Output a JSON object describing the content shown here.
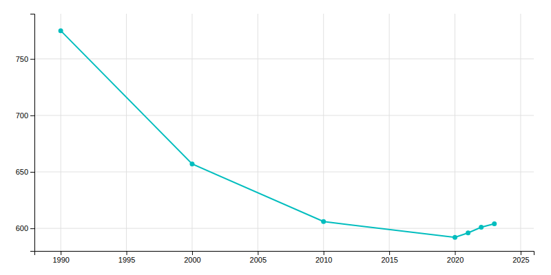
{
  "chart_data": {
    "type": "line",
    "x": [
      1990,
      2000,
      2010,
      2020,
      2021,
      2022,
      2023
    ],
    "values": [
      775,
      657,
      606,
      592,
      596,
      601,
      604
    ],
    "color": "#00BDBE",
    "marker": "circle",
    "xlim": [
      1988,
      2026
    ],
    "ylim": [
      580,
      790
    ],
    "xticks": [
      1990,
      1995,
      2000,
      2005,
      2010,
      2015,
      2020,
      2025
    ],
    "yticks": [
      600,
      650,
      700,
      750
    ],
    "grid": true
  }
}
